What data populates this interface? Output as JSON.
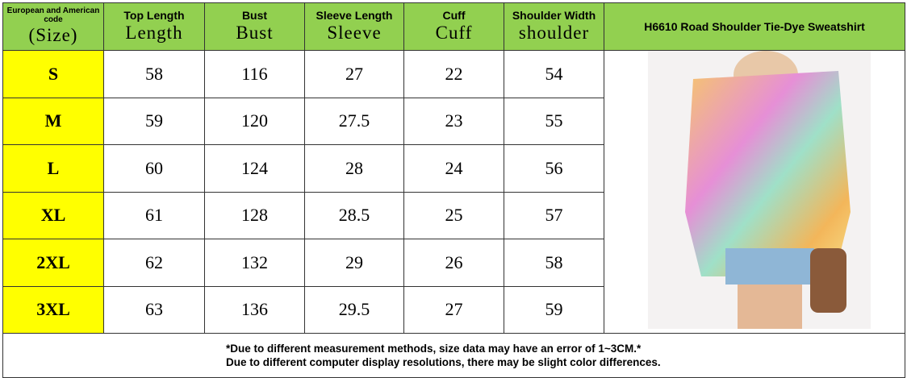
{
  "header": {
    "columns": [
      {
        "top": "European and American code",
        "bottom": "(Size)"
      },
      {
        "top": "Top Length",
        "bottom": "Length"
      },
      {
        "top": "Bust",
        "bottom": "Bust"
      },
      {
        "top": "Sleeve Length",
        "bottom": "Sleeve"
      },
      {
        "top": "Cuff",
        "bottom": "Cuff"
      },
      {
        "top": "Shoulder Width",
        "bottom": "shoulder"
      }
    ],
    "product": "H6610 Road Shoulder Tie-Dye Sweatshirt"
  },
  "table": {
    "rows": [
      [
        "S",
        "58",
        "116",
        "27",
        "22",
        "54"
      ],
      [
        "M",
        "59",
        "120",
        "27.5",
        "23",
        "55"
      ],
      [
        "L",
        "60",
        "124",
        "28",
        "24",
        "56"
      ],
      [
        "XL",
        "61",
        "128",
        "28.5",
        "25",
        "57"
      ],
      [
        "2XL",
        "62",
        "132",
        "29",
        "26",
        "58"
      ],
      [
        "3XL",
        "63",
        "136",
        "29.5",
        "27",
        "59"
      ]
    ]
  },
  "note": [
    "*Due to different measurement methods, size data may have an error of 1~3CM.*",
    "Due to different computer display resolutions, there may be slight color differences."
  ]
}
